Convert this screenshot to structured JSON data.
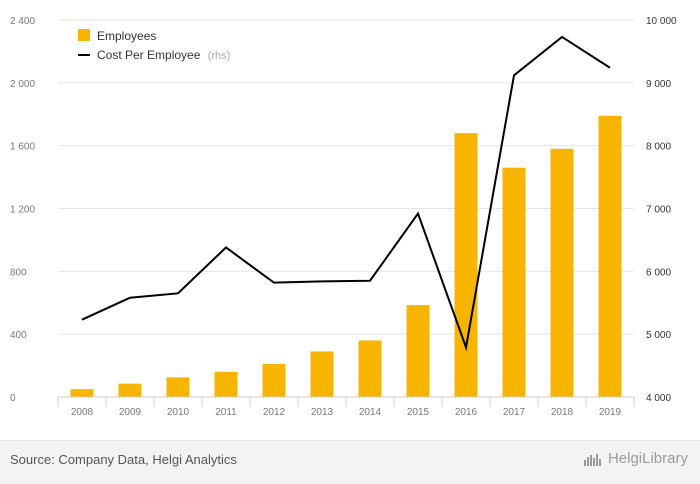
{
  "chart_data": {
    "type": "bar",
    "categories": [
      "2008",
      "2009",
      "2010",
      "2011",
      "2012",
      "2013",
      "2014",
      "2015",
      "2016",
      "2017",
      "2018",
      "2019"
    ],
    "series": [
      {
        "name": "Employees",
        "type": "bar",
        "axis": "left",
        "color": "#f7b500",
        "values": [
          50,
          85,
          125,
          160,
          210,
          290,
          360,
          585,
          1680,
          1460,
          1580,
          1790
        ]
      },
      {
        "name": "Cost Per Employee",
        "type": "line",
        "axis": "right",
        "color": "#000000",
        "values": [
          5230,
          5580,
          5650,
          6380,
          5820,
          5840,
          5850,
          6920,
          4790,
          9120,
          9730,
          9240
        ]
      }
    ],
    "left_axis": {
      "ylim": [
        0,
        2400
      ],
      "ticks": [
        0,
        400,
        800,
        1200,
        1600,
        2000,
        2400
      ],
      "tick_labels": [
        "0",
        "400",
        "800",
        "1 200",
        "1 600",
        "2 000",
        "2 400"
      ]
    },
    "right_axis": {
      "ylim": [
        4000,
        10000
      ],
      "ticks": [
        4000,
        5000,
        6000,
        7000,
        8000,
        9000,
        10000
      ],
      "tick_labels": [
        "4 000",
        "5 000",
        "6 000",
        "7 000",
        "8 000",
        "9 000",
        "10 000"
      ]
    },
    "legend": {
      "position": "top-left",
      "items": [
        {
          "label": "Employees",
          "suffix": ""
        },
        {
          "label": "Cost Per Employee",
          "suffix": "(rhs)"
        }
      ]
    },
    "grid": true
  },
  "footer": {
    "source": "Source: Company Data, Helgi Analytics",
    "brand": "HelgiLibrary",
    "brand_icon": "helgi-logo-icon"
  }
}
